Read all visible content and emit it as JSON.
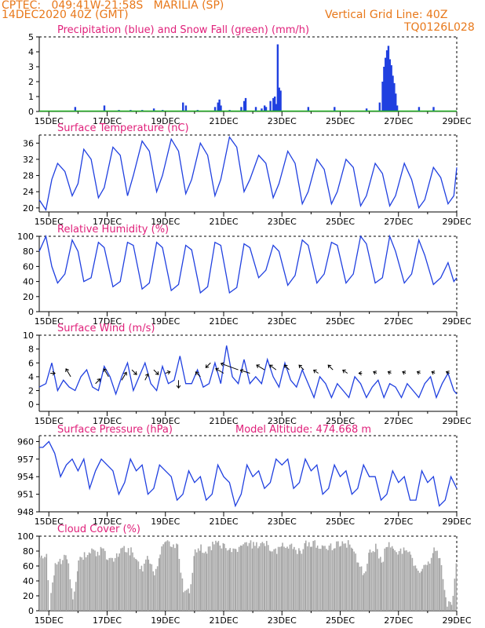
{
  "header": {
    "line1": "CPTEC:   049:41W-21:58S   MARILIA (SP)",
    "line2": "14DEC2020 40Z (GMT)",
    "right1": "Vertical Grid Line: 40Z",
    "right2": "TQ0126L028"
  },
  "colors": {
    "header": "#e8781a",
    "title": "#e0207a",
    "series": "#2040e0",
    "snow": "#20b020",
    "cloud": "#a8a8a8",
    "grid": "#000000"
  },
  "x_axis": {
    "start_day": 14.67,
    "end_day": 29.0,
    "tick_labels": [
      "15DEC",
      "17DEC",
      "19DEC",
      "21DEC",
      "23DEC",
      "25DEC",
      "27DEC",
      "29DEC"
    ],
    "tick_days": [
      15,
      17,
      19,
      21,
      23,
      25,
      27,
      29
    ]
  },
  "chart_data": [
    {
      "type": "bar",
      "title": "Precipitation (blue) and Snow Fall (green) (mm/h)",
      "ylim": [
        0,
        5
      ],
      "yticks": [
        "0",
        "1",
        "2",
        "3",
        "4",
        "5"
      ],
      "series": [
        {
          "name": "Precipitation",
          "x": [
            15.9,
            16.9,
            17.4,
            17.8,
            18.2,
            18.6,
            18.9,
            19.6,
            19.7,
            20.1,
            20.7,
            20.8,
            20.85,
            20.9,
            21.2,
            21.6,
            21.7,
            21.75,
            22.1,
            22.3,
            22.4,
            22.45,
            22.6,
            22.7,
            22.75,
            22.8,
            22.85,
            22.9,
            22.95,
            23.9,
            24.8,
            25.9,
            26.35,
            26.45,
            26.5,
            26.55,
            26.6,
            26.65,
            26.7,
            26.75,
            26.8,
            26.85,
            26.9,
            26.95,
            27.7,
            28.2
          ],
          "values": [
            0.3,
            0.4,
            0.1,
            0.1,
            0.1,
            0.2,
            0.1,
            0.6,
            0.4,
            0.1,
            0.3,
            0.6,
            0.8,
            0.4,
            0.1,
            0.3,
            0.7,
            0.9,
            0.3,
            0.2,
            0.4,
            0.3,
            0.7,
            0.9,
            1.0,
            0.5,
            4.5,
            1.6,
            1.4,
            0.3,
            0.3,
            0.2,
            0.6,
            2.0,
            3.0,
            3.6,
            4.1,
            4.4,
            3.5,
            3.1,
            2.4,
            1.9,
            1.2,
            0.4,
            0.3,
            0.3
          ]
        },
        {
          "name": "Snow Fall",
          "x": [],
          "values": []
        }
      ]
    },
    {
      "type": "line",
      "title": "Surface Temperature (nC)",
      "ylim": [
        19,
        38
      ],
      "yticks": [
        "20",
        "24",
        "28",
        "32",
        "36"
      ],
      "ytick_values": [
        20,
        24,
        28,
        32,
        36
      ],
      "series": [
        {
          "name": "Temperature",
          "x": [
            14.67,
            14.9,
            15.1,
            15.3,
            15.55,
            15.8,
            16.0,
            16.2,
            16.45,
            16.7,
            16.9,
            17.2,
            17.45,
            17.7,
            17.9,
            18.2,
            18.45,
            18.7,
            18.9,
            19.2,
            19.45,
            19.7,
            19.9,
            20.2,
            20.45,
            20.7,
            20.9,
            21.2,
            21.45,
            21.7,
            21.9,
            22.2,
            22.45,
            22.7,
            22.9,
            23.2,
            23.45,
            23.7,
            23.9,
            24.2,
            24.45,
            24.7,
            24.9,
            25.2,
            25.45,
            25.7,
            25.9,
            26.2,
            26.45,
            26.7,
            26.9,
            27.2,
            27.45,
            27.7,
            27.9,
            28.2,
            28.45,
            28.7,
            28.9,
            29.0
          ],
          "values": [
            22,
            19.5,
            27,
            31,
            29,
            23,
            26,
            34.5,
            32,
            22.5,
            25,
            35,
            33,
            23,
            28,
            36.5,
            34,
            24,
            28,
            37,
            34,
            23.5,
            27,
            36,
            33,
            23,
            27,
            37.5,
            35,
            24,
            27,
            33,
            31,
            22.5,
            26,
            34,
            31,
            21,
            24,
            32,
            29.5,
            21,
            24,
            32,
            30,
            20.5,
            23,
            31,
            28.5,
            20.5,
            23,
            31,
            27,
            20,
            22,
            30,
            27.5,
            21,
            23,
            30
          ]
        }
      ]
    },
    {
      "type": "line",
      "title": "Relative Humidity (%)",
      "ylim": [
        0,
        100
      ],
      "yticks": [
        "0",
        "20",
        "40",
        "60",
        "80",
        "100"
      ],
      "ytick_values": [
        0,
        20,
        40,
        60,
        80,
        100
      ],
      "series": [
        {
          "name": "Relative Humidity",
          "x": [
            14.67,
            14.9,
            15.1,
            15.3,
            15.55,
            15.8,
            16.0,
            16.2,
            16.45,
            16.7,
            16.9,
            17.2,
            17.45,
            17.7,
            17.9,
            18.2,
            18.45,
            18.7,
            18.9,
            19.2,
            19.45,
            19.7,
            19.9,
            20.2,
            20.45,
            20.7,
            20.9,
            21.2,
            21.45,
            21.7,
            21.9,
            22.2,
            22.45,
            22.7,
            22.9,
            23.2,
            23.45,
            23.7,
            23.9,
            24.2,
            24.45,
            24.7,
            24.9,
            25.2,
            25.45,
            25.7,
            25.9,
            26.2,
            26.45,
            26.7,
            26.9,
            27.2,
            27.45,
            27.7,
            27.9,
            28.2,
            28.45,
            28.7,
            28.9,
            29.0
          ],
          "values": [
            80,
            100,
            60,
            38,
            50,
            95,
            80,
            40,
            45,
            92,
            85,
            33,
            40,
            92,
            88,
            30,
            38,
            92,
            85,
            28,
            36,
            88,
            82,
            25,
            33,
            92,
            88,
            25,
            32,
            90,
            85,
            45,
            55,
            88,
            80,
            35,
            48,
            95,
            88,
            38,
            50,
            92,
            88,
            38,
            50,
            100,
            90,
            38,
            45,
            100,
            80,
            38,
            50,
            95,
            75,
            36,
            45,
            65,
            40,
            45
          ]
        }
      ]
    },
    {
      "type": "line",
      "title": "Surface Wind (m/s)",
      "ylim": [
        -1,
        10
      ],
      "yticks": [
        "0",
        "2",
        "4",
        "6",
        "8",
        "10"
      ],
      "ytick_values": [
        0,
        2,
        4,
        6,
        8,
        10
      ],
      "series": [
        {
          "name": "Wind Speed",
          "x": [
            14.67,
            14.9,
            15.1,
            15.3,
            15.5,
            15.7,
            15.9,
            16.1,
            16.3,
            16.5,
            16.7,
            16.9,
            17.1,
            17.3,
            17.5,
            17.7,
            17.9,
            18.1,
            18.3,
            18.5,
            18.7,
            18.9,
            19.1,
            19.3,
            19.5,
            19.7,
            19.9,
            20.1,
            20.3,
            20.5,
            20.7,
            20.9,
            21.1,
            21.3,
            21.5,
            21.7,
            21.9,
            22.1,
            22.3,
            22.5,
            22.7,
            22.9,
            23.1,
            23.3,
            23.5,
            23.7,
            23.9,
            24.1,
            24.3,
            24.5,
            24.7,
            24.9,
            25.1,
            25.3,
            25.5,
            25.7,
            25.9,
            26.1,
            26.3,
            26.5,
            26.7,
            26.9,
            27.1,
            27.3,
            27.5,
            27.7,
            27.9,
            28.1,
            28.3,
            28.5,
            28.7,
            28.9,
            29.0
          ],
          "values": [
            2.5,
            3,
            6,
            2,
            3.5,
            2.5,
            2,
            4,
            5,
            2.5,
            2,
            5.5,
            4,
            1.5,
            4,
            6,
            2,
            4,
            6,
            3,
            2,
            5.5,
            3,
            3.5,
            7,
            3,
            3,
            5,
            2.5,
            3,
            6,
            3,
            8.5,
            4,
            3,
            6.5,
            3,
            4,
            3,
            6.5,
            4,
            2.5,
            6,
            3.5,
            2.5,
            5,
            3,
            1,
            4,
            3,
            1,
            3,
            2,
            1,
            4,
            3,
            1,
            2.5,
            3.5,
            1,
            3,
            2.5,
            1,
            3,
            2,
            1,
            3,
            4,
            1,
            3,
            4.5,
            2,
            1.5
          ]
        }
      ],
      "wind_vectors": {
        "x": [
          15.05,
          15.75,
          16.6,
          17.05,
          17.5,
          17.85,
          18.3,
          18.6,
          19.0,
          19.45,
          20.2,
          20.55,
          21.0,
          21.5,
          21.9,
          22.4,
          22.8,
          23.25,
          23.75,
          24.25,
          24.75,
          25.25,
          25.75,
          26.25,
          26.75,
          27.25,
          27.75,
          28.25,
          28.75
        ],
        "u": [
          1.5,
          -1.5,
          1.5,
          -1.5,
          1.5,
          1.5,
          1.0,
          1.5,
          1.5,
          0.0,
          -1.5,
          -1.5,
          -2.5,
          -5.5,
          -3.0,
          -2.5,
          -2.0,
          -1.5,
          -1.5,
          -1.5,
          -1.5,
          -1.5,
          -1.0,
          -1.0,
          -1.0,
          -1.0,
          -1.0,
          -1.0,
          -1.0
        ],
        "v": [
          0.0,
          2.5,
          1.5,
          2.5,
          2.5,
          -1.5,
          2.0,
          -1.5,
          0.5,
          -2.5,
          1.5,
          -1.5,
          1.5,
          2.0,
          1.0,
          1.5,
          1.5,
          1.5,
          1.5,
          1.0,
          1.5,
          1.0,
          0.0,
          0.5,
          0.5,
          0.5,
          0.5,
          0.5,
          0.5
        ],
        "base": [
          4.5,
          4,
          3,
          4,
          3.5,
          5,
          3.5,
          5,
          4.5,
          3.5,
          4,
          6,
          4.5,
          5,
          4.5,
          5,
          5,
          5,
          5,
          4.5,
          5,
          4.5,
          4.5,
          4.5,
          4.5,
          4.5,
          4.5,
          4.5,
          4.5
        ]
      }
    },
    {
      "type": "line",
      "title": "Surface Pressure (hPa)",
      "annotation": "Model Altitude: 474.668 m",
      "ylim": [
        948,
        961
      ],
      "yticks": [
        "948",
        "951",
        "954",
        "957",
        "960"
      ],
      "ytick_values": [
        948,
        951,
        954,
        957,
        960
      ],
      "series": [
        {
          "name": "Surface Pressure",
          "x": [
            14.67,
            14.8,
            15.0,
            15.2,
            15.4,
            15.6,
            15.8,
            16.0,
            16.2,
            16.4,
            16.6,
            16.8,
            17.0,
            17.2,
            17.4,
            17.6,
            17.8,
            18.0,
            18.2,
            18.4,
            18.6,
            18.8,
            19.0,
            19.2,
            19.4,
            19.6,
            19.8,
            20.0,
            20.2,
            20.4,
            20.6,
            20.8,
            21.0,
            21.2,
            21.4,
            21.6,
            21.8,
            22.0,
            22.2,
            22.4,
            22.6,
            22.8,
            23.0,
            23.2,
            23.4,
            23.6,
            23.8,
            24.0,
            24.2,
            24.4,
            24.6,
            24.8,
            25.0,
            25.2,
            25.4,
            25.6,
            25.8,
            26.0,
            26.2,
            26.4,
            26.6,
            26.8,
            27.0,
            27.2,
            27.4,
            27.6,
            27.8,
            28.0,
            28.2,
            28.4,
            28.6,
            28.8,
            29.0
          ],
          "values": [
            959,
            959,
            960,
            958,
            954,
            956,
            957,
            955,
            957,
            952,
            955,
            957,
            956,
            955,
            951,
            953,
            957,
            955,
            956,
            951,
            952,
            956,
            955,
            954,
            950,
            951,
            955,
            953,
            954,
            950,
            951,
            956,
            954,
            953,
            949,
            951,
            956,
            954,
            955,
            952,
            953,
            957,
            956,
            957,
            952,
            953,
            957,
            955,
            956,
            951,
            952,
            956,
            954,
            955,
            951,
            952,
            956,
            954,
            954,
            950,
            951,
            955,
            953,
            954,
            950,
            950,
            955,
            953,
            954,
            949,
            950,
            954,
            952
          ]
        }
      ]
    },
    {
      "type": "bar",
      "title": "Cloud Cover (%)",
      "ylim": [
        0,
        100
      ],
      "yticks": [
        "0",
        "20",
        "40",
        "60",
        "80",
        "100"
      ],
      "series": [
        {
          "name": "Cloud Cover",
          "x": [
            14.67,
            14.9,
            15.0,
            15.2,
            15.4,
            15.6,
            15.8,
            16.0,
            16.2,
            16.4,
            16.6,
            16.8,
            17.0,
            17.2,
            17.4,
            17.6,
            17.8,
            18.0,
            18.2,
            18.4,
            18.6,
            18.8,
            19.0,
            19.2,
            19.4,
            19.6,
            19.8,
            20.0,
            20.2,
            20.4,
            20.6,
            20.8,
            21.0,
            21.2,
            21.4,
            21.6,
            21.8,
            22.0,
            22.2,
            22.4,
            22.6,
            22.8,
            23.0,
            23.2,
            23.4,
            23.6,
            23.8,
            24.0,
            24.2,
            24.4,
            24.6,
            24.8,
            25.0,
            25.2,
            25.4,
            25.6,
            25.8,
            26.0,
            26.2,
            26.4,
            26.6,
            26.8,
            27.0,
            27.2,
            27.4,
            27.6,
            27.8,
            28.0,
            28.2,
            28.4,
            28.6,
            28.8,
            29.0
          ],
          "values": [
            75,
            80,
            10,
            70,
            70,
            80,
            20,
            75,
            80,
            85,
            80,
            90,
            75,
            70,
            85,
            90,
            85,
            75,
            60,
            80,
            55,
            85,
            95,
            95,
            90,
            35,
            30,
            90,
            90,
            85,
            95,
            95,
            95,
            90,
            85,
            95,
            95,
            95,
            95,
            95,
            90,
            85,
            95,
            95,
            90,
            85,
            95,
            95,
            95,
            95,
            90,
            95,
            95,
            95,
            95,
            65,
            55,
            90,
            90,
            70,
            95,
            95,
            85,
            90,
            80,
            65,
            60,
            70,
            85,
            80,
            20,
            10,
            80
          ]
        }
      ]
    }
  ]
}
